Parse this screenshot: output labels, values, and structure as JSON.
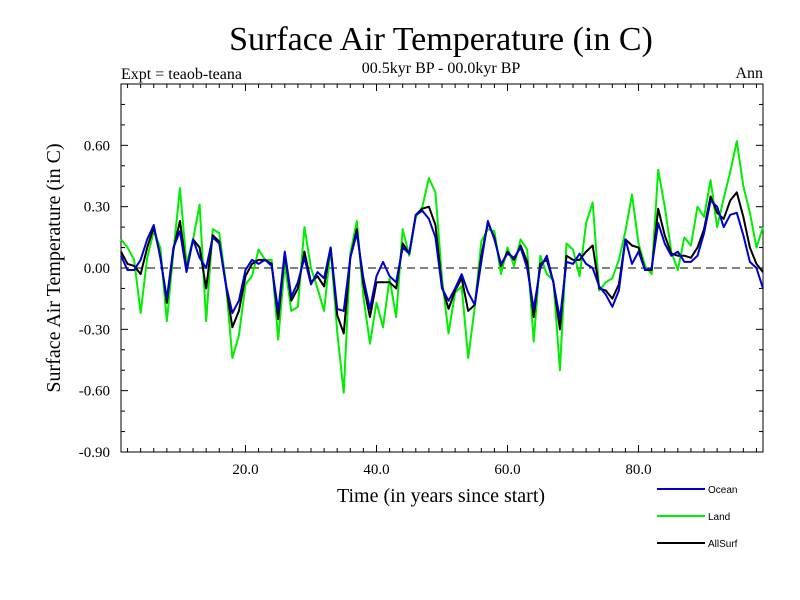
{
  "chart_data": {
    "type": "line",
    "title": "Surface Air Temperature (in C)",
    "subtitle_left": "Expt = teaob-teana",
    "subtitle_center": "00.5kyr BP - 00.0kyr BP",
    "subtitle_right": "Ann",
    "xlabel": "Time (in years since start)",
    "ylabel": "Surface Air Temperature (in C)",
    "xlim": [
      1,
      99
    ],
    "ylim": [
      -0.9,
      0.9
    ],
    "x_ticks": [
      20.0,
      40.0,
      60.0,
      80.0
    ],
    "x_tick_labels": [
      "20.0",
      "40.0",
      "60.0",
      "80.0"
    ],
    "y_ticks": [
      -0.9,
      -0.6,
      -0.3,
      0.0,
      0.3,
      0.6
    ],
    "y_tick_labels": [
      "-0.90",
      "-0.60",
      "-0.30",
      "0.00",
      "0.30",
      "0.60"
    ],
    "zero_line": "dashed",
    "legend_position": "bottom-right",
    "x": [
      1,
      2,
      3,
      4,
      5,
      6,
      7,
      8,
      9,
      10,
      11,
      12,
      13,
      14,
      15,
      16,
      17,
      18,
      19,
      20,
      21,
      22,
      23,
      24,
      25,
      26,
      27,
      28,
      29,
      30,
      31,
      32,
      33,
      34,
      35,
      36,
      37,
      38,
      39,
      40,
      41,
      42,
      43,
      44,
      45,
      46,
      47,
      48,
      49,
      50,
      51,
      52,
      53,
      54,
      55,
      56,
      57,
      58,
      59,
      60,
      61,
      62,
      63,
      64,
      65,
      66,
      67,
      68,
      69,
      70,
      71,
      72,
      73,
      74,
      75,
      76,
      77,
      78,
      79,
      80,
      81,
      82,
      83,
      84,
      85,
      86,
      87,
      88,
      89,
      90,
      91,
      92,
      93,
      94,
      95,
      96,
      97,
      98,
      99
    ],
    "series": [
      {
        "name": "Ocean",
        "color": "#0000cc",
        "values": [
          0.06,
          -0.01,
          -0.01,
          0.04,
          0.14,
          0.21,
          0.05,
          -0.15,
          0.1,
          0.18,
          -0.02,
          0.14,
          0.05,
          0.0,
          0.15,
          0.12,
          -0.08,
          -0.22,
          -0.16,
          -0.01,
          0.04,
          0.02,
          0.04,
          0.01,
          -0.21,
          0.08,
          -0.14,
          -0.07,
          0.05,
          -0.08,
          -0.02,
          -0.05,
          0.1,
          -0.2,
          -0.21,
          0.05,
          0.17,
          -0.05,
          -0.2,
          -0.04,
          0.03,
          -0.04,
          -0.07,
          0.1,
          0.07,
          0.26,
          0.28,
          0.24,
          0.15,
          -0.1,
          -0.16,
          -0.1,
          -0.03,
          -0.12,
          -0.18,
          0.03,
          0.23,
          0.14,
          0.02,
          0.07,
          0.05,
          0.1,
          0.0,
          -0.2,
          0.0,
          0.06,
          -0.07,
          -0.25,
          0.03,
          0.02,
          0.07,
          0.02,
          0.0,
          -0.09,
          -0.13,
          -0.19,
          -0.11,
          0.14,
          0.02,
          0.08,
          -0.01,
          0.0,
          0.22,
          0.12,
          0.06,
          0.08,
          0.03,
          0.03,
          0.06,
          0.17,
          0.33,
          0.3,
          0.2,
          0.26,
          0.27,
          0.16,
          0.03,
          0.0,
          -0.1
        ]
      },
      {
        "name": "Land",
        "color": "#00ee00",
        "values": [
          0.14,
          0.1,
          0.04,
          -0.22,
          0.05,
          0.18,
          0.1,
          -0.26,
          0.08,
          0.39,
          0.02,
          0.14,
          0.31,
          -0.26,
          0.19,
          0.17,
          -0.07,
          -0.44,
          -0.33,
          -0.08,
          -0.04,
          0.09,
          0.04,
          0.04,
          -0.35,
          0.02,
          -0.21,
          -0.19,
          0.2,
          0.0,
          -0.1,
          -0.21,
          0.1,
          -0.31,
          -0.61,
          0.07,
          0.23,
          -0.14,
          -0.37,
          -0.17,
          -0.29,
          -0.05,
          -0.24,
          0.19,
          0.06,
          0.25,
          0.3,
          0.44,
          0.37,
          -0.05,
          -0.32,
          -0.12,
          -0.09,
          -0.44,
          -0.19,
          0.13,
          0.19,
          0.18,
          -0.03,
          0.1,
          0.01,
          0.14,
          0.09,
          -0.36,
          0.06,
          -0.03,
          -0.06,
          -0.5,
          0.12,
          0.09,
          -0.04,
          0.22,
          0.32,
          -0.11,
          -0.07,
          -0.05,
          0.04,
          0.18,
          0.36,
          0.12,
          0.01,
          -0.03,
          0.48,
          0.3,
          0.08,
          -0.01,
          0.15,
          0.11,
          0.3,
          0.25,
          0.43,
          0.2,
          0.34,
          0.47,
          0.62,
          0.4,
          0.27,
          0.1,
          0.2
        ]
      },
      {
        "name": "AllSurf",
        "color": "#000000",
        "values": [
          0.08,
          0.02,
          0.01,
          -0.03,
          0.1,
          0.2,
          0.06,
          -0.17,
          0.09,
          0.23,
          -0.01,
          0.14,
          0.1,
          -0.1,
          0.16,
          0.13,
          -0.08,
          -0.29,
          -0.21,
          -0.04,
          0.02,
          0.04,
          0.04,
          0.02,
          -0.25,
          0.07,
          -0.16,
          -0.1,
          0.08,
          -0.07,
          -0.04,
          -0.09,
          0.1,
          -0.23,
          -0.32,
          0.05,
          0.19,
          -0.08,
          -0.24,
          -0.07,
          -0.07,
          -0.07,
          -0.1,
          0.12,
          0.07,
          0.26,
          0.29,
          0.3,
          0.21,
          -0.09,
          -0.2,
          -0.11,
          -0.05,
          -0.21,
          -0.18,
          0.06,
          0.22,
          0.15,
          0.01,
          0.08,
          0.04,
          0.11,
          0.03,
          -0.24,
          0.02,
          0.04,
          -0.07,
          -0.3,
          0.06,
          0.04,
          0.04,
          0.08,
          0.11,
          -0.1,
          -0.11,
          -0.15,
          -0.08,
          0.14,
          0.11,
          0.1,
          -0.01,
          -0.01,
          0.29,
          0.16,
          0.07,
          0.06,
          0.06,
          0.05,
          0.1,
          0.19,
          0.35,
          0.27,
          0.24,
          0.33,
          0.37,
          0.25,
          0.1,
          0.02,
          -0.02
        ]
      }
    ]
  }
}
